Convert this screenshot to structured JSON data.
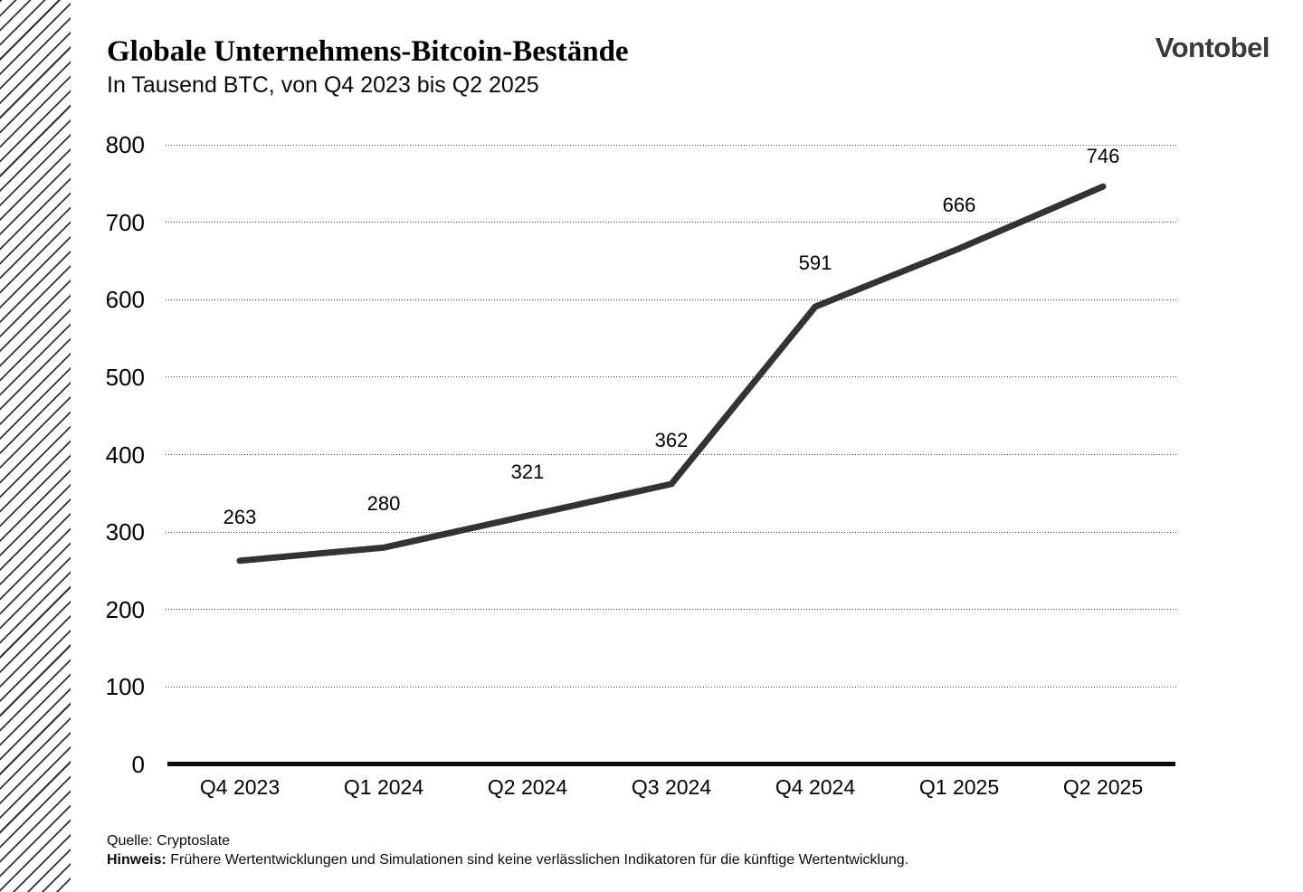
{
  "brand": {
    "logo_text": "Vontobel",
    "color": "#3a3a3c"
  },
  "footer": {
    "source": "Quelle: Cryptoslate",
    "note_label": "Hinweis:",
    "note_text": "Frühere Wertentwicklungen und Simulationen sind keine verlässlichen Indikatoren für die künftige Wertentwicklung."
  },
  "chart_data": {
    "type": "line",
    "title": "Globale Unternehmens-Bitcoin-Bestände",
    "subtitle": "In Tausend BTC, von Q4 2023 bis Q2 2025",
    "categories": [
      "Q4 2023",
      "Q1 2024",
      "Q2 2024",
      "Q3 2024",
      "Q4 2024",
      "Q1 2025",
      "Q2 2025"
    ],
    "values": [
      263,
      280,
      321,
      362,
      591,
      666,
      746
    ],
    "xlabel": "",
    "ylabel": "",
    "ylim": [
      0,
      800
    ],
    "ytick_step": 100,
    "grid": "horizontal-dotted",
    "legend": "none",
    "line_color": "#333333",
    "axis_color": "#0b0b0b",
    "label_dy": [
      48,
      48,
      48,
      48,
      48,
      48,
      33
    ]
  }
}
